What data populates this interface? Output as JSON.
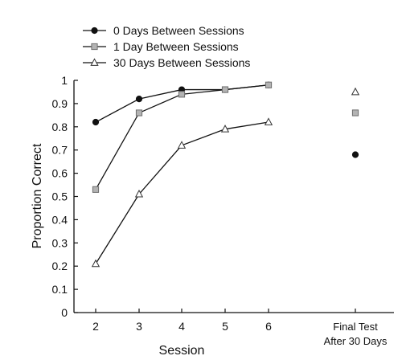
{
  "chart_data": {
    "type": "line",
    "xlabel": "Session",
    "ylabel": "Proportion Correct",
    "x": [
      2,
      3,
      4,
      5,
      6
    ],
    "final_test_label": [
      "Final Test",
      "After 30 Days"
    ],
    "ylim": [
      0,
      1
    ],
    "yticks": [
      "0",
      "0.1",
      "0.2",
      "0.3",
      "0.4",
      "0.5",
      "0.6",
      "0.7",
      "0.8",
      "0.9",
      "1"
    ],
    "xticks": [
      "2",
      "3",
      "4",
      "5",
      "6"
    ],
    "grid": false,
    "legend_position": "top-left",
    "series": [
      {
        "name": "0 Days Between Sessions",
        "marker": "circle",
        "values": [
          0.82,
          0.92,
          0.96,
          0.96,
          0.98
        ],
        "final_test": 0.68
      },
      {
        "name": "1 Day Between Sessions",
        "marker": "square",
        "values": [
          0.53,
          0.86,
          0.94,
          0.96,
          0.98
        ],
        "final_test": 0.86
      },
      {
        "name": "30 Days Between Sessions",
        "marker": "triangle",
        "values": [
          0.21,
          0.51,
          0.72,
          0.79,
          0.82
        ],
        "final_test": 0.95
      }
    ],
    "colors": {
      "line": "#111111",
      "circle_fill": "#111111",
      "square_fill": "#b3b3b3",
      "triangle_fill": "#ffffff"
    }
  }
}
